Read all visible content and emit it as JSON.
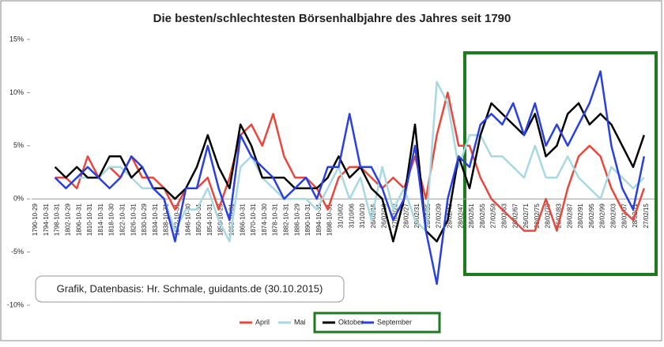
{
  "chart_data": {
    "type": "line",
    "title": "Die besten/schlechtesten Börsenhalbjahre des Jahres seit 1790",
    "annotation": "Grafik, Datenbasis: Hr. Schmale, guidants.de (30.10.2015)",
    "categories": [
      "1790-10-29",
      "1794-10-31",
      "1798-10-31",
      "1802-10-29",
      "1806-10-31",
      "1810-10-31",
      "1814-10-31",
      "1818-10-30",
      "1822-10-31",
      "1826-10-31",
      "1830-10-29",
      "1834-10-31",
      "1838-10-31",
      "1842-10-31",
      "1846-10-30",
      "1850-10-31",
      "1854-10-31",
      "1858-10-29",
      "1862-10-31",
      "1866-10-31",
      "1870-10-31",
      "1874-10-30",
      "1878-10-31",
      "1882-10-31",
      "1886-10-29",
      "1890-10-31",
      "1894-10-31",
      "1898-10-31",
      "31/10/02",
      "31/10/06",
      "31/10/10",
      "26/02/15",
      "26/02/19",
      "27/02/23",
      "28/02/27",
      "28/02/31",
      "28/02/35",
      "27/02/39",
      "28/02/43",
      "28/02/47",
      "28/02/51",
      "28/02/55",
      "27/02/59",
      "28/02/63",
      "28/02/67",
      "26/02/71",
      "28/02/75",
      "28/02/79",
      "26/02/83",
      "28/02/87",
      "28/02/91",
      "26/02/95",
      "28/02/99",
      "28/02/03",
      "28/02/07",
      "28/02/11",
      "27/02/15"
    ],
    "series": [
      {
        "name": "April",
        "color": "#e8473c",
        "values": [
          null,
          null,
          2,
          2,
          1,
          4,
          2,
          3,
          2,
          4,
          2,
          2,
          1,
          -1,
          1,
          1,
          2,
          -1,
          2,
          6,
          7,
          5,
          8,
          4,
          2,
          2,
          1,
          -1,
          2,
          3,
          3,
          2,
          1,
          2,
          1,
          4,
          0,
          6,
          10,
          5,
          5,
          2,
          0,
          -1,
          -2,
          -3,
          -3,
          0,
          -3,
          1,
          4,
          5,
          4,
          1,
          -1,
          -2,
          1
        ]
      },
      {
        "name": "Mai",
        "color": "#a8d8e0",
        "values": [
          null,
          null,
          2,
          1,
          2,
          2,
          2,
          3,
          3,
          2,
          1,
          1,
          0,
          -3,
          -1,
          -1,
          1,
          -2,
          -4,
          3,
          4,
          2,
          1,
          0,
          0,
          0,
          -1,
          1,
          3,
          0,
          2,
          -2,
          3,
          -1,
          1,
          -2,
          -3,
          11,
          9,
          3,
          6,
          6,
          4,
          4,
          3,
          2,
          5,
          2,
          2,
          4,
          2,
          1,
          0,
          3,
          2,
          1,
          2
        ]
      },
      {
        "name": "Oktober",
        "color": "#000000",
        "values": [
          null,
          null,
          3,
          2,
          3,
          2,
          2,
          4,
          4,
          2,
          3,
          1,
          1,
          0,
          1,
          3,
          6,
          3,
          1,
          7,
          5,
          2,
          2,
          2,
          1,
          1,
          1,
          2,
          4,
          2,
          3,
          1,
          0,
          -4,
          0,
          7,
          -3,
          -4,
          -2,
          4,
          1,
          6,
          9,
          8,
          7,
          6,
          8,
          4,
          5,
          8,
          9,
          7,
          8,
          7,
          5,
          3,
          6
        ]
      },
      {
        "name": "September",
        "color": "#2a3fe0",
        "values": [
          null,
          null,
          2,
          1,
          2,
          3,
          2,
          1,
          2,
          4,
          3,
          1,
          0,
          -4,
          1,
          1,
          5,
          1,
          -2,
          6,
          4,
          3,
          2,
          0,
          1,
          2,
          0,
          3,
          3,
          8,
          3,
          3,
          1,
          -2,
          0,
          5,
          -3,
          -8,
          0,
          4,
          3,
          7,
          8,
          7,
          9,
          6,
          9,
          5,
          7,
          5,
          7,
          9,
          12,
          5,
          1,
          -1,
          4
        ]
      }
    ],
    "ylim": [
      -10,
      15
    ],
    "yticks": [
      {
        "value": -10,
        "label": "-10%"
      },
      {
        "value": -5,
        "label": "-5%"
      },
      {
        "value": 0,
        "label": "0%"
      },
      {
        "value": 5,
        "label": "5%"
      },
      {
        "value": 10,
        "label": "10%"
      },
      {
        "value": 15,
        "label": "15%"
      }
    ],
    "grid": false
  }
}
